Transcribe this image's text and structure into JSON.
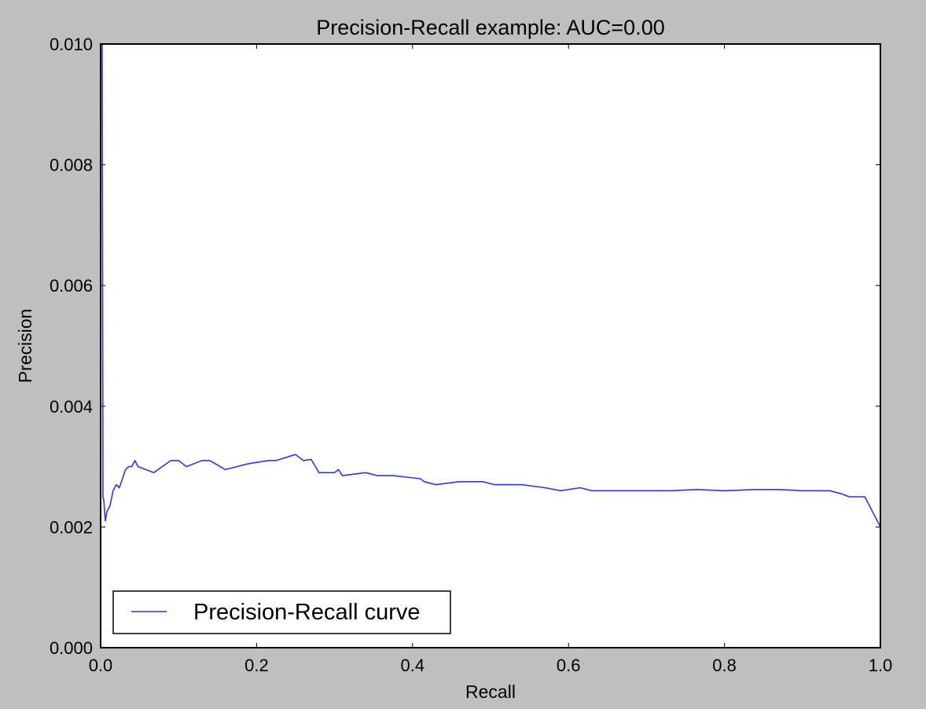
{
  "chart_data": {
    "type": "line",
    "title": "Precision-Recall example: AUC=0.00",
    "xlabel": "Recall",
    "ylabel": "Precision",
    "xlim": [
      0.0,
      1.0
    ],
    "ylim": [
      0.0,
      0.01
    ],
    "xticks": [
      {
        "value": 0.0,
        "label": "0.0"
      },
      {
        "value": 0.2,
        "label": "0.2"
      },
      {
        "value": 0.4,
        "label": "0.4"
      },
      {
        "value": 0.6,
        "label": "0.6"
      },
      {
        "value": 0.8,
        "label": "0.8"
      },
      {
        "value": 1.0,
        "label": "1.0"
      }
    ],
    "yticks": [
      {
        "value": 0.0,
        "label": "0.000"
      },
      {
        "value": 0.002,
        "label": "0.002"
      },
      {
        "value": 0.004,
        "label": "0.004"
      },
      {
        "value": 0.006,
        "label": "0.006"
      },
      {
        "value": 0.008,
        "label": "0.008"
      },
      {
        "value": 0.01,
        "label": "0.010"
      }
    ],
    "grid": false,
    "legend_position": "lower-left",
    "series": [
      {
        "name": "Precision-Recall curve",
        "color": "#2a35f5",
        "x": [
          0.0,
          0.002,
          0.003,
          0.004,
          0.006,
          0.008,
          0.012,
          0.016,
          0.02,
          0.024,
          0.028,
          0.032,
          0.036,
          0.04,
          0.044,
          0.048,
          0.068,
          0.09,
          0.1,
          0.11,
          0.13,
          0.14,
          0.16,
          0.19,
          0.215,
          0.225,
          0.25,
          0.26,
          0.27,
          0.28,
          0.3,
          0.305,
          0.31,
          0.34,
          0.355,
          0.375,
          0.41,
          0.415,
          0.43,
          0.46,
          0.49,
          0.505,
          0.54,
          0.57,
          0.59,
          0.615,
          0.63,
          0.67,
          0.7,
          0.73,
          0.765,
          0.8,
          0.84,
          0.87,
          0.9,
          0.93,
          0.935,
          0.95,
          0.96,
          0.98,
          1.0
        ],
        "y": [
          0.01,
          0.01,
          0.0025,
          0.00245,
          0.0021,
          0.00225,
          0.00235,
          0.0026,
          0.0027,
          0.00265,
          0.0028,
          0.00295,
          0.003,
          0.003,
          0.0031,
          0.003,
          0.0029,
          0.0031,
          0.0031,
          0.003,
          0.0031,
          0.0031,
          0.00295,
          0.00305,
          0.0031,
          0.0031,
          0.0032,
          0.0031,
          0.00312,
          0.0029,
          0.0029,
          0.00295,
          0.00285,
          0.0029,
          0.00285,
          0.00285,
          0.0028,
          0.00275,
          0.0027,
          0.00275,
          0.00275,
          0.0027,
          0.0027,
          0.00265,
          0.0026,
          0.00265,
          0.0026,
          0.0026,
          0.0026,
          0.0026,
          0.00262,
          0.0026,
          0.00262,
          0.00262,
          0.0026,
          0.0026,
          0.0026,
          0.00255,
          0.0025,
          0.0025,
          0.002
        ]
      }
    ]
  }
}
